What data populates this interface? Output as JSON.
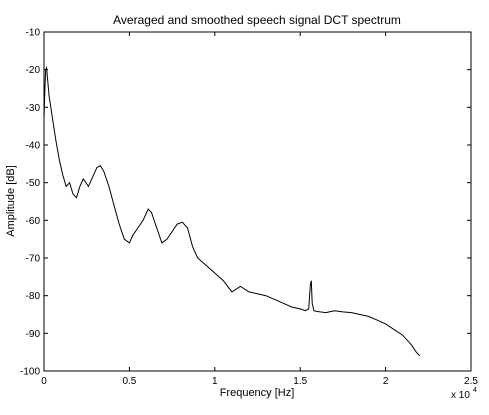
{
  "chart_data": {
    "type": "line",
    "title": "Averaged and smoothed speech signal DCT spectrum",
    "xlabel": "Frequency [Hz]",
    "ylabel": "Amplitude [dB]",
    "x_multiplier": "x 10",
    "x_multiplier_exp": "4",
    "xlim": [
      0,
      2.5
    ],
    "ylim": [
      -100,
      -10
    ],
    "xticks": [
      0,
      0.5,
      1,
      1.5,
      2,
      2.5
    ],
    "xtick_labels": [
      "0",
      "0.5",
      "1",
      "1.5",
      "2",
      "2.5"
    ],
    "yticks": [
      -100,
      -90,
      -80,
      -70,
      -60,
      -50,
      -40,
      -30,
      -20,
      -10
    ],
    "ytick_labels": [
      "-100",
      "-90",
      "-80",
      "-70",
      "-60",
      "-50",
      "-40",
      "-30",
      "-20",
      "-10"
    ],
    "grid": false,
    "line_color": "#000000",
    "series": [
      {
        "x": [
          0.0,
          0.005,
          0.01,
          0.015,
          0.02,
          0.03,
          0.05,
          0.07,
          0.09,
          0.11,
          0.13,
          0.15,
          0.17,
          0.19,
          0.21,
          0.23,
          0.26,
          0.29,
          0.31,
          0.33,
          0.35,
          0.38,
          0.41,
          0.44,
          0.47,
          0.5,
          0.52,
          0.55,
          0.58,
          0.61,
          0.63,
          0.66,
          0.69,
          0.72,
          0.75,
          0.78,
          0.81,
          0.84,
          0.87,
          0.9,
          0.95,
          1.0,
          1.05,
          1.1,
          1.15,
          1.2,
          1.25,
          1.3,
          1.35,
          1.4,
          1.45,
          1.5,
          1.53,
          1.55,
          1.56,
          1.565,
          1.57,
          1.58,
          1.6,
          1.65,
          1.7,
          1.75,
          1.8,
          1.85,
          1.9,
          1.95,
          2.0,
          2.05,
          2.1,
          2.15,
          2.18,
          2.2
        ],
        "y": [
          -33,
          -25,
          -20,
          -19.5,
          -22,
          -27,
          -33,
          -39,
          -44,
          -48,
          -51,
          -50,
          -53,
          -54,
          -51,
          -49,
          -51,
          -48,
          -46,
          -45.5,
          -47,
          -51,
          -56,
          -61,
          -65,
          -66,
          -64,
          -62,
          -60,
          -57,
          -58,
          -62,
          -66,
          -65,
          -63,
          -61,
          -60.5,
          -62,
          -67,
          -70,
          -72,
          -74,
          -76,
          -79,
          -77.5,
          -79,
          -79.5,
          -80,
          -81,
          -82,
          -83,
          -83.5,
          -84,
          -83.5,
          -77,
          -76,
          -82,
          -84,
          -84.2,
          -84.5,
          -84,
          -84.3,
          -84.5,
          -85,
          -85.5,
          -86.5,
          -87.5,
          -89,
          -90.5,
          -93,
          -95,
          -96
        ]
      }
    ]
  }
}
